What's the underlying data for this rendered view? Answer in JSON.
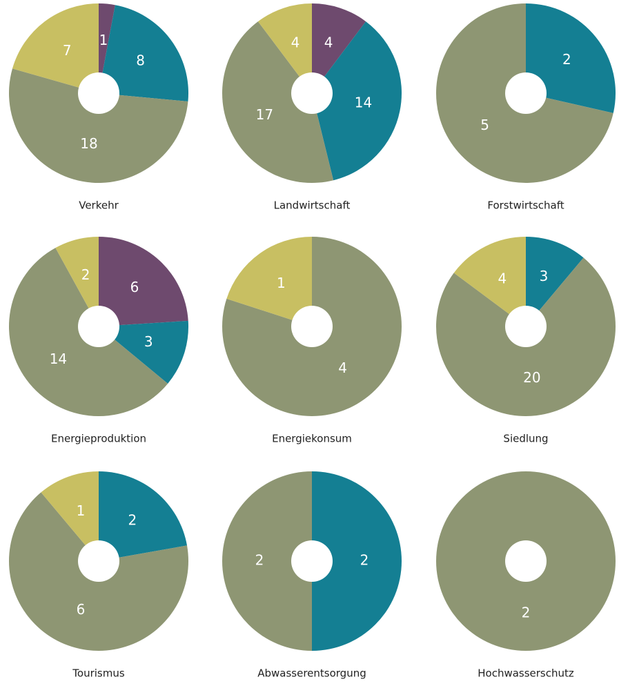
{
  "chart_data": [
    {
      "type": "pie",
      "title": "Verkehr",
      "values": [
        1,
        8,
        18,
        7
      ],
      "colors": [
        "#6e4a6e",
        "#147f93",
        "#8e9673",
        "#c8bf62"
      ]
    },
    {
      "type": "pie",
      "title": "Landwirtschaft",
      "values": [
        4,
        14,
        17,
        4
      ],
      "colors": [
        "#6e4a6e",
        "#147f93",
        "#8e9673",
        "#c8bf62"
      ]
    },
    {
      "type": "pie",
      "title": "Forstwirtschaft",
      "values": [
        2,
        5
      ],
      "colors": [
        "#147f93",
        "#8e9673"
      ]
    },
    {
      "type": "pie",
      "title": "Energieproduktion",
      "values": [
        6,
        3,
        14,
        2
      ],
      "colors": [
        "#6e4a6e",
        "#147f93",
        "#8e9673",
        "#c8bf62"
      ]
    },
    {
      "type": "pie",
      "title": "Energiekonsum",
      "values": [
        4,
        1
      ],
      "colors": [
        "#8e9673",
        "#c8bf62"
      ]
    },
    {
      "type": "pie",
      "title": "Siedlung",
      "values": [
        3,
        20,
        4
      ],
      "colors": [
        "#147f93",
        "#8e9673",
        "#c8bf62"
      ]
    },
    {
      "type": "pie",
      "title": "Tourismus",
      "values": [
        2,
        6,
        1
      ],
      "colors": [
        "#147f93",
        "#8e9673",
        "#c8bf62"
      ]
    },
    {
      "type": "pie",
      "title": "Abwasserentsorgung",
      "values": [
        2,
        2
      ],
      "colors": [
        "#147f93",
        "#8e9673"
      ]
    },
    {
      "type": "pie",
      "title": "Hochwasserschutz",
      "values": [
        2
      ],
      "colors": [
        "#8e9673"
      ]
    }
  ]
}
